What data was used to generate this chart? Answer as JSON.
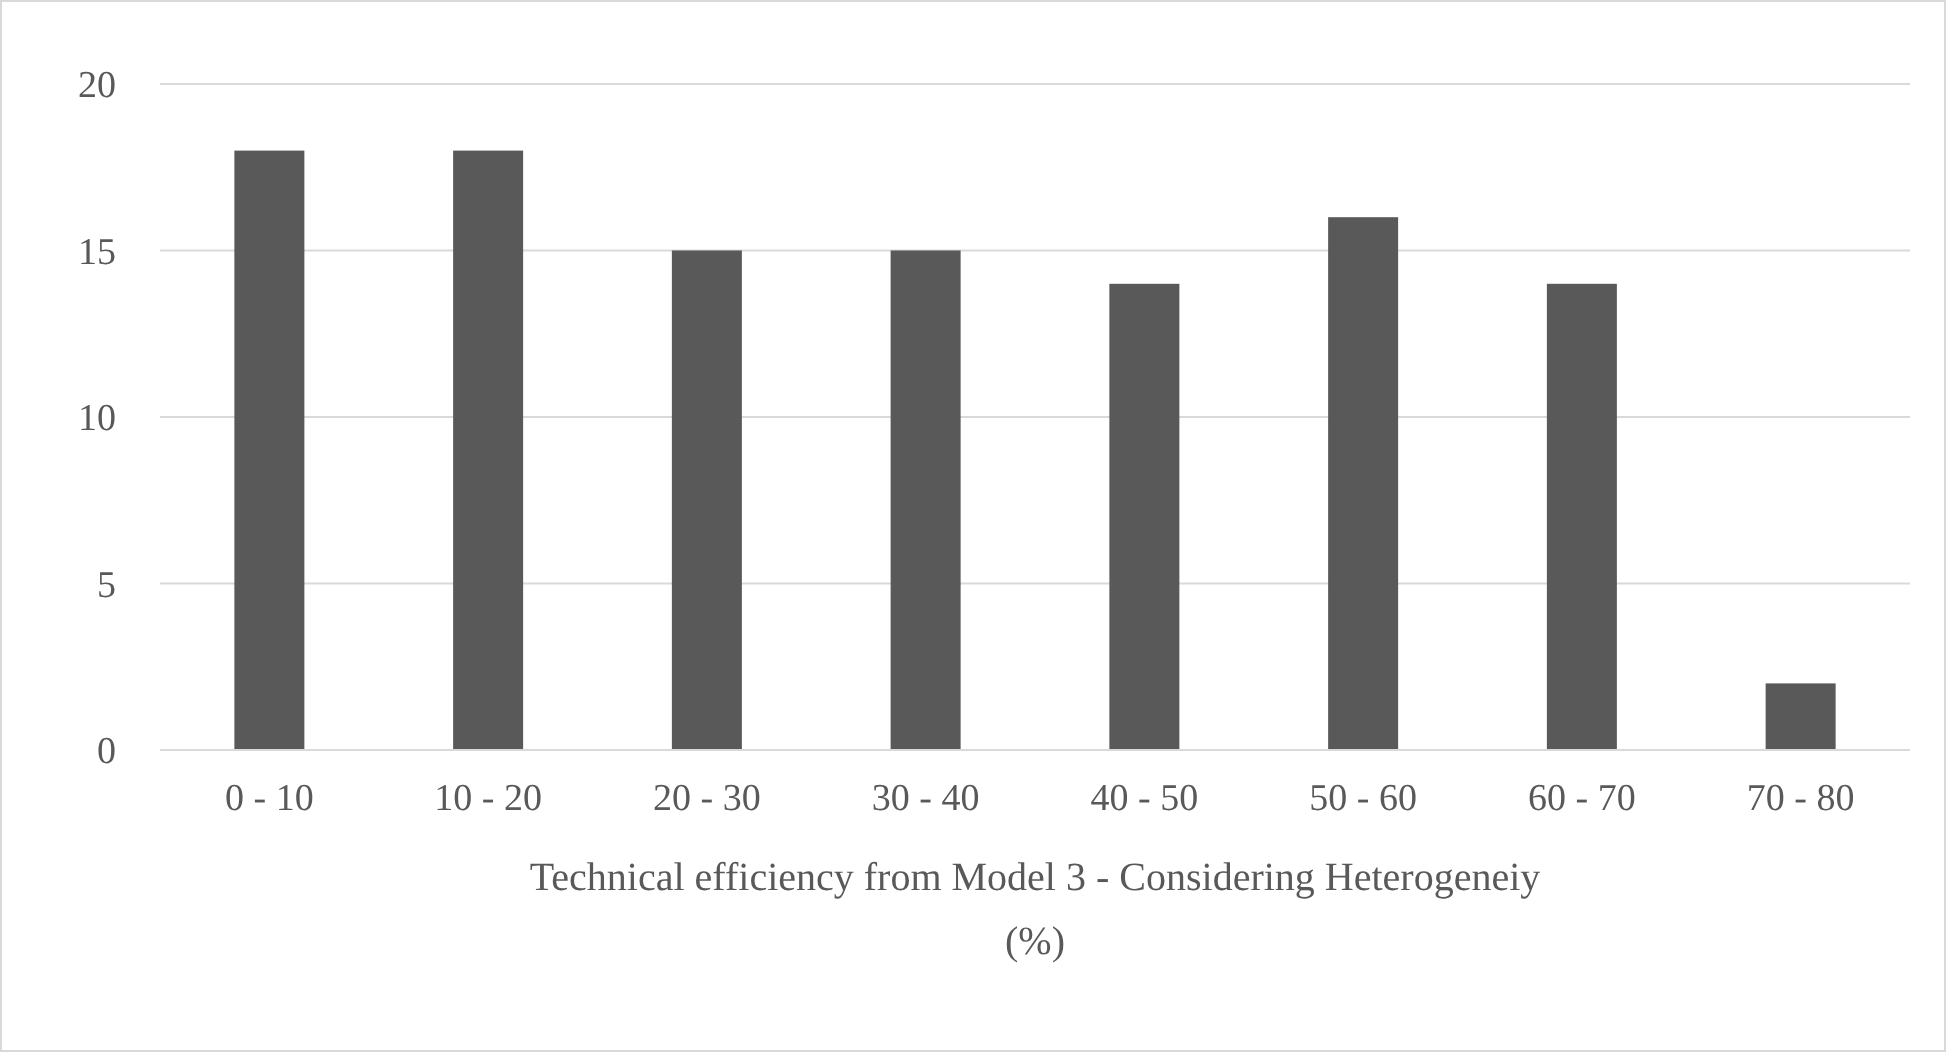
{
  "chart_data": {
    "type": "bar",
    "xlabel": "Technical efficiency from Model 3 - Considering Heterogeneiy (%)",
    "categories": [
      "0 - 10",
      "10 - 20",
      "20 - 30",
      "30 - 40",
      "40 - 50",
      "50 - 60",
      "60 - 70",
      "70 - 80"
    ],
    "values": [
      18,
      18,
      15,
      15,
      14,
      16,
      14,
      2
    ],
    "color": "#595959",
    "ylim": [
      0,
      20
    ],
    "yticks": [
      0,
      5,
      10,
      15,
      20
    ],
    "grid": "y"
  }
}
